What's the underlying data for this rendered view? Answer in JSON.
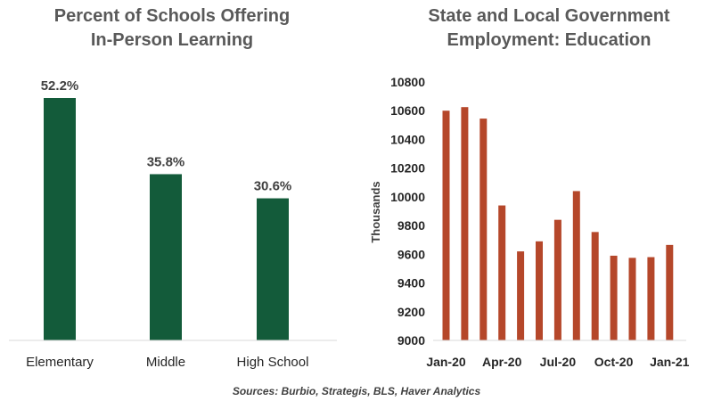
{
  "chart_data": [
    {
      "type": "bar",
      "title_line1": "Percent of Schools Offering",
      "title_line2": "In-Person Learning",
      "categories": [
        "Elementary",
        "Middle",
        "High School"
      ],
      "values": [
        52.2,
        35.8,
        30.6
      ],
      "data_labels": [
        "52.2%",
        "35.8%",
        "30.6%"
      ],
      "ylim": [
        0,
        60
      ],
      "bar_color": "#135B3A",
      "grid": false,
      "legend": "none"
    },
    {
      "type": "bar",
      "title_line1": "State and Local Government",
      "title_line2": "Employment: Education",
      "ylabel": "Thousands",
      "x": [
        "Jan-20",
        "Feb-20",
        "Mar-20",
        "Apr-20",
        "May-20",
        "Jun-20",
        "Jul-20",
        "Aug-20",
        "Sep-20",
        "Oct-20",
        "Nov-20",
        "Dec-20",
        "Jan-21"
      ],
      "x_tick_labels": [
        "Jan-20",
        "Apr-20",
        "Jul-20",
        "Oct-20",
        "Jan-21"
      ],
      "values": [
        10600,
        10625,
        10545,
        9940,
        9620,
        9690,
        9840,
        10040,
        9755,
        9590,
        9575,
        9580,
        9665
      ],
      "ylim": [
        9000,
        10800
      ],
      "y_ticks": [
        9000,
        9200,
        9400,
        9600,
        9800,
        10000,
        10200,
        10400,
        10600,
        10800
      ],
      "bar_color": "#B5472A",
      "grid": false,
      "legend": "none"
    }
  ],
  "source": "Sources: Burbio, Strategis, BLS,  Haver Analytics"
}
